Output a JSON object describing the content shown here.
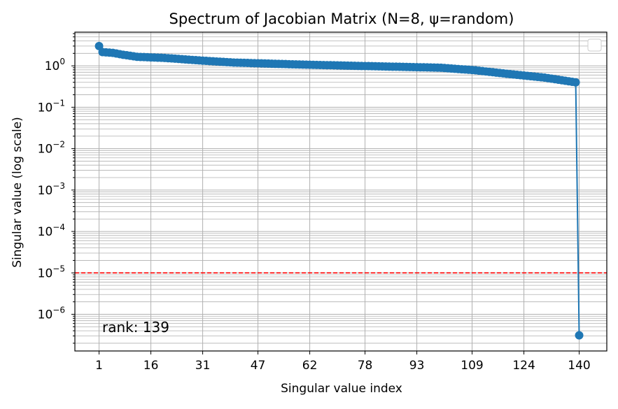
{
  "chart_data": {
    "type": "line",
    "title": "Spectrum of Jacobian Matrix (N=8, ψ=random)",
    "xlabel": "Singular value index",
    "ylabel": "Singular value (log scale)",
    "xlim": [
      -6,
      148
    ],
    "ylim": [
      1.3e-07,
      6.5
    ],
    "y_scale": "log",
    "grid": "both (major and minor)",
    "x_ticks": [
      1,
      16,
      31,
      47,
      62,
      78,
      93,
      109,
      124,
      140
    ],
    "y_ticks": [
      {
        "value": 1e-06,
        "base": "10",
        "exp": "−6"
      },
      {
        "value": 1e-05,
        "base": "10",
        "exp": "−5"
      },
      {
        "value": 0.0001,
        "base": "10",
        "exp": "−4"
      },
      {
        "value": 0.001,
        "base": "10",
        "exp": "−3"
      },
      {
        "value": 0.01,
        "base": "10",
        "exp": "−2"
      },
      {
        "value": 0.1,
        "base": "10",
        "exp": "−1"
      },
      {
        "value": 1,
        "base": "10",
        "exp": "0"
      }
    ],
    "threshold": {
      "value": 1e-05,
      "color": "#ff0000",
      "style": "dashed"
    },
    "annotation": "rank: 139",
    "legend": "top-right (empty)",
    "series": [
      {
        "color": "#1f77b4",
        "n_points": 140,
        "first_value": 3.0,
        "last_value": 3.1e-07,
        "profile_points": [
          [
            1,
            3.0
          ],
          [
            2,
            2.15
          ],
          [
            5,
            2.05
          ],
          [
            8,
            1.85
          ],
          [
            12,
            1.65
          ],
          [
            20,
            1.55
          ],
          [
            25,
            1.45
          ],
          [
            30,
            1.35
          ],
          [
            40,
            1.2
          ],
          [
            60,
            1.07
          ],
          [
            80,
            0.98
          ],
          [
            100,
            0.9
          ],
          [
            110,
            0.78
          ],
          [
            120,
            0.63
          ],
          [
            130,
            0.52
          ],
          [
            139,
            0.4
          ],
          [
            140,
            3.1e-07
          ]
        ]
      }
    ]
  }
}
